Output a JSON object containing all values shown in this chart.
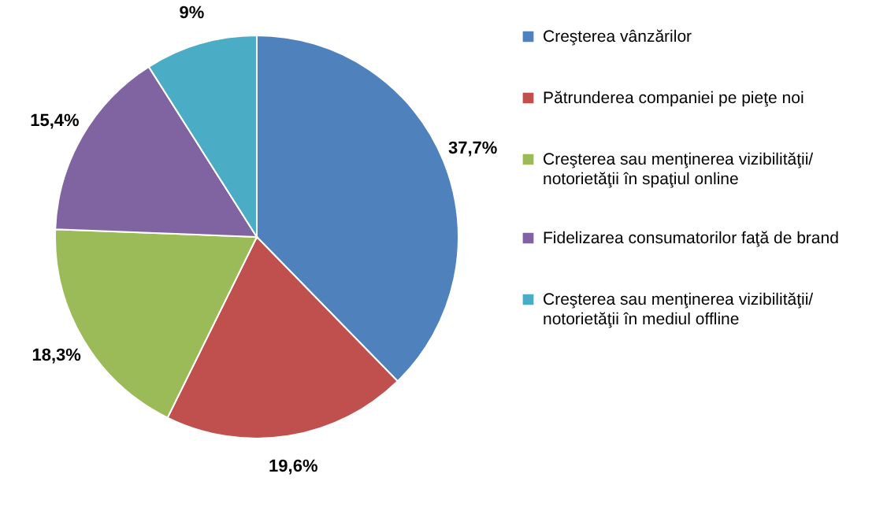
{
  "chart_data": {
    "type": "pie",
    "categories": [
      "Creşterea vânzărilor",
      "Pătrunderea companiei pe pieţe noi",
      "Creşterea sau menţinerea vizibilităţii/ notorietăţii în spaţiul online",
      "Fidelizarea consumatorilor faţă de brand",
      "Creşterea sau menţinerea vizibilităţii/ notorietăţii în mediul offline"
    ],
    "values": [
      37.7,
      19.6,
      18.3,
      15.4,
      9
    ],
    "colors": [
      "#4f81bd",
      "#c0504d",
      "#9bbb59",
      "#8064a2",
      "#4bacc6"
    ],
    "value_labels": [
      "37,7%",
      "19,6%",
      "18,3%",
      "15,4%",
      "9%"
    ],
    "legend": "right"
  }
}
